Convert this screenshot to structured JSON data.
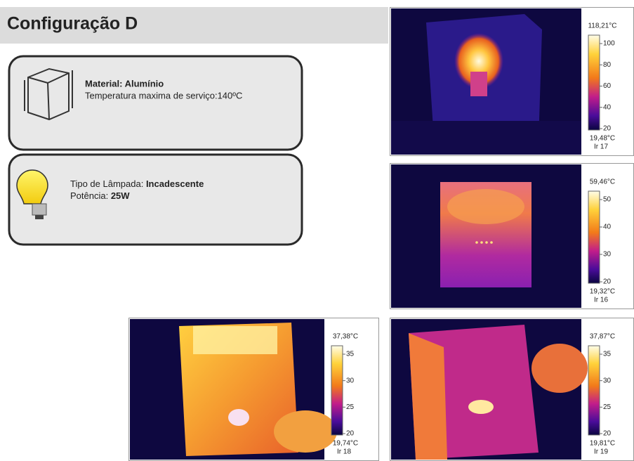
{
  "header": {
    "title": "Configuração D"
  },
  "material_card": {
    "material": "Material: Alumínio",
    "temperature": "Temperatura maxima de serviço:140ºC"
  },
  "lamp_card": {
    "type_label": "Tipo de Lâmpada:",
    "type_value": "Incadescente",
    "power_label": "Potência:",
    "power_value": "25W"
  },
  "thermal_images": [
    {
      "max": "118,21°C",
      "ticks": [
        "100",
        "80",
        "60",
        "40",
        "20"
      ],
      "min": "19,48°C",
      "id": "Ir 17"
    },
    {
      "max": "59,46°C",
      "ticks": [
        "50",
        "40",
        "30",
        "20"
      ],
      "min": "19,32°C",
      "id": "Ir 16"
    },
    {
      "max": "37,38°C",
      "ticks": [
        "35",
        "30",
        "25",
        "20"
      ],
      "min": "19,74°C",
      "id": "Ir 18"
    },
    {
      "max": "37,87°C",
      "ticks": [
        "35",
        "30",
        "25",
        "20"
      ],
      "min": "19,81°C",
      "id": "Ir 19"
    }
  ]
}
